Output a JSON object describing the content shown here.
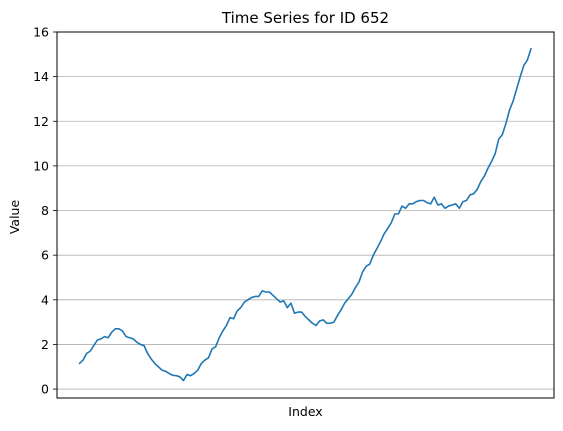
{
  "chart_data": {
    "type": "line",
    "title": "Time Series for ID 652",
    "xlabel": "Index",
    "ylabel": "Value",
    "ylim": [
      -0.4,
      16
    ],
    "yticks": [
      0,
      2,
      4,
      6,
      8,
      10,
      12,
      14,
      16
    ],
    "xticks_shown": false,
    "grid": "y",
    "legend": "none",
    "series": [
      {
        "color": "#1f77b4",
        "values": [
          1.15,
          1.3,
          1.6,
          1.7,
          1.95,
          2.2,
          2.25,
          2.35,
          2.3,
          2.55,
          2.7,
          2.7,
          2.6,
          2.35,
          2.3,
          2.25,
          2.1,
          2.0,
          1.95,
          1.6,
          1.35,
          1.15,
          1.0,
          0.85,
          0.8,
          0.7,
          0.62,
          0.6,
          0.55,
          0.38,
          0.65,
          0.6,
          0.7,
          0.85,
          1.15,
          1.3,
          1.4,
          1.8,
          1.9,
          2.3,
          2.6,
          2.85,
          3.2,
          3.15,
          3.5,
          3.65,
          3.9,
          4.0,
          4.1,
          4.15,
          4.15,
          4.4,
          4.35,
          4.35,
          4.2,
          4.05,
          3.9,
          3.95,
          3.65,
          3.85,
          3.4,
          3.45,
          3.45,
          3.25,
          3.1,
          2.95,
          2.85,
          3.05,
          3.1,
          2.95,
          2.95,
          3.0,
          3.3,
          3.55,
          3.85,
          4.05,
          4.25,
          4.55,
          4.8,
          5.25,
          5.5,
          5.6,
          6.0,
          6.3,
          6.6,
          6.95,
          7.2,
          7.45,
          7.85,
          7.85,
          8.2,
          8.1,
          8.3,
          8.3,
          8.4,
          8.45,
          8.45,
          8.35,
          8.3,
          8.6,
          8.25,
          8.3,
          8.1,
          8.2,
          8.25,
          8.3,
          8.1,
          8.4,
          8.45,
          8.7,
          8.75,
          8.95,
          9.3,
          9.55,
          9.9,
          10.2,
          10.55,
          11.2,
          11.4,
          11.9,
          12.5,
          12.9,
          13.45,
          14.0,
          14.5,
          14.75,
          15.25
        ]
      }
    ]
  }
}
